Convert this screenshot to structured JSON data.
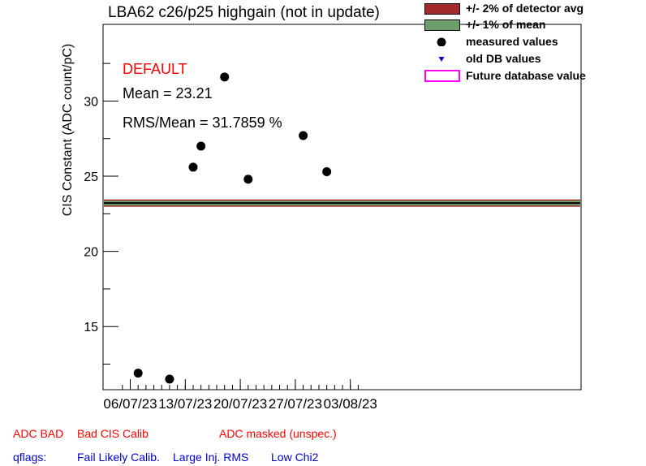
{
  "chart_data": {
    "type": "scatter",
    "title": "LBA62 c26/p25 highgain (not in update)",
    "ylabel": "CIS Constant (ADC count/pC)",
    "xlabel": "",
    "x_tick_labels": [
      "06/07/23",
      "13/07/23",
      "20/07/23",
      "27/07/23",
      "03/08/23"
    ],
    "y_tick_labels": [
      "15",
      "20",
      "25",
      "30"
    ],
    "ylim": [
      10.8,
      35.1
    ],
    "xlim": [
      "2023-07-05",
      "2023-08-04"
    ],
    "mean": 23.21,
    "series": [
      {
        "name": "measured values",
        "points": [
          {
            "x": "2023-07-07",
            "y": 11.9
          },
          {
            "x": "2023-07-11",
            "y": 11.5
          },
          {
            "x": "2023-07-14",
            "y": 25.6
          },
          {
            "x": "2023-07-15",
            "y": 27.0
          },
          {
            "x": "2023-07-18",
            "y": 31.6
          },
          {
            "x": "2023-07-21",
            "y": 24.8
          },
          {
            "x": "2023-07-28",
            "y": 27.7
          },
          {
            "x": "2023-07-31",
            "y": 25.3
          }
        ]
      }
    ],
    "bands": [
      {
        "name": "+/- 2% of detector avg",
        "color": "#a52a2a"
      },
      {
        "name": "+/- 1% of mean",
        "color": "#6b9e6b"
      }
    ],
    "legend_position": "top-right"
  },
  "stats": {
    "status": "DEFAULT",
    "mean_text": "Mean = 23.21",
    "rms_text": "RMS/Mean = 31.7859 %"
  },
  "legend": {
    "items": [
      {
        "label": "+/- 2% of detector avg",
        "symbol": "box",
        "color": "#a52a2a"
      },
      {
        "label": "+/- 1% of mean",
        "symbol": "box",
        "color": "#6b9e6b"
      },
      {
        "label": "measured values",
        "symbol": "dot",
        "color": "#000000"
      },
      {
        "label": "old DB values",
        "symbol": "triangle",
        "color": "#0000cc"
      },
      {
        "label": "Future database value",
        "symbol": "outline",
        "color": "#ff00ff"
      }
    ]
  },
  "footer": {
    "adc_bad": "ADC BAD",
    "bad_cis": "Bad CIS Calib",
    "adc_masked": "ADC masked (unspec.)",
    "qflags": "qflags:",
    "fail_likely": "Fail Likely Calib.",
    "large_inj": "Large Inj. RMS",
    "low_chi2": "Low Chi2"
  },
  "colors": {
    "red": "#ff0000",
    "blue": "#0000cc",
    "mean_line": "#000000"
  }
}
